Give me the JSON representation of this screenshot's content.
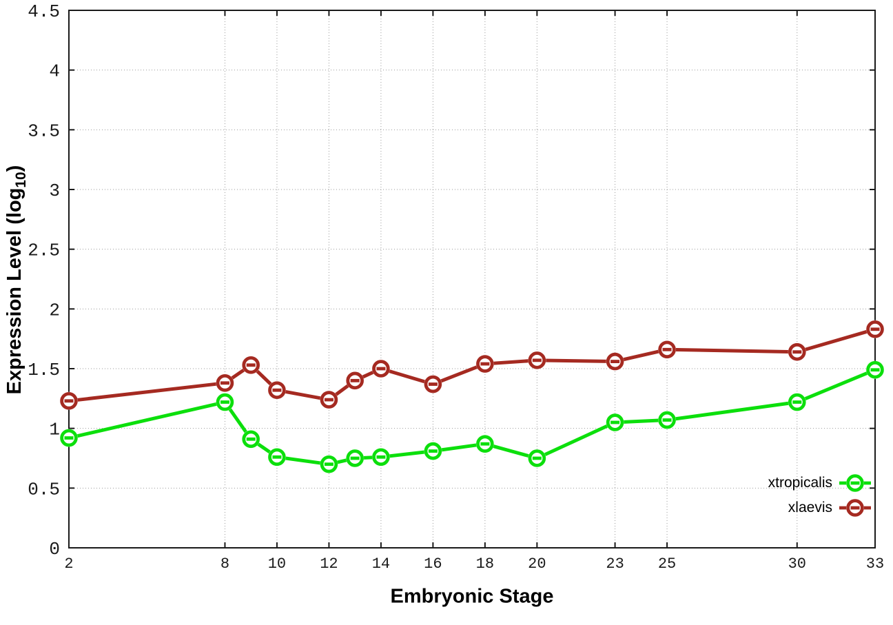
{
  "figure": {
    "background": "#ffffff",
    "border_color": "#1a1a1a",
    "grid_color": "#999999",
    "tick_label_color": "#1a1a1a"
  },
  "chart_data": {
    "type": "line",
    "title": "",
    "xlabel": "Embryonic Stage",
    "ylabel": {
      "pre": "Expression Level (log",
      "sub": "10",
      "post": ")"
    },
    "xlim": [
      2,
      33
    ],
    "ylim": [
      0,
      4.5
    ],
    "xticks": [
      2,
      8,
      10,
      12,
      14,
      16,
      18,
      20,
      23,
      25,
      30,
      33
    ],
    "yticks": [
      0,
      0.5,
      1,
      1.5,
      2,
      2.5,
      3,
      3.5,
      4,
      4.5
    ],
    "grid": true,
    "legend": {
      "position": "bottom-right"
    },
    "x": [
      2,
      8,
      9,
      10,
      12,
      13,
      14,
      16,
      18,
      20,
      23,
      25,
      30,
      33
    ],
    "series": [
      {
        "name": "xtropicalis",
        "color": "#0cdf0c",
        "marker": "open-circle-dash",
        "values": [
          0.92,
          1.22,
          0.91,
          0.76,
          0.7,
          0.75,
          0.76,
          0.81,
          0.87,
          0.75,
          1.05,
          1.07,
          1.22,
          1.49
        ]
      },
      {
        "name": "xlaevis",
        "color": "#a52a21",
        "marker": "open-circle-dash",
        "values": [
          1.23,
          1.38,
          1.53,
          1.32,
          1.24,
          1.4,
          1.5,
          1.37,
          1.54,
          1.57,
          1.56,
          1.66,
          1.64,
          1.83
        ]
      }
    ]
  }
}
